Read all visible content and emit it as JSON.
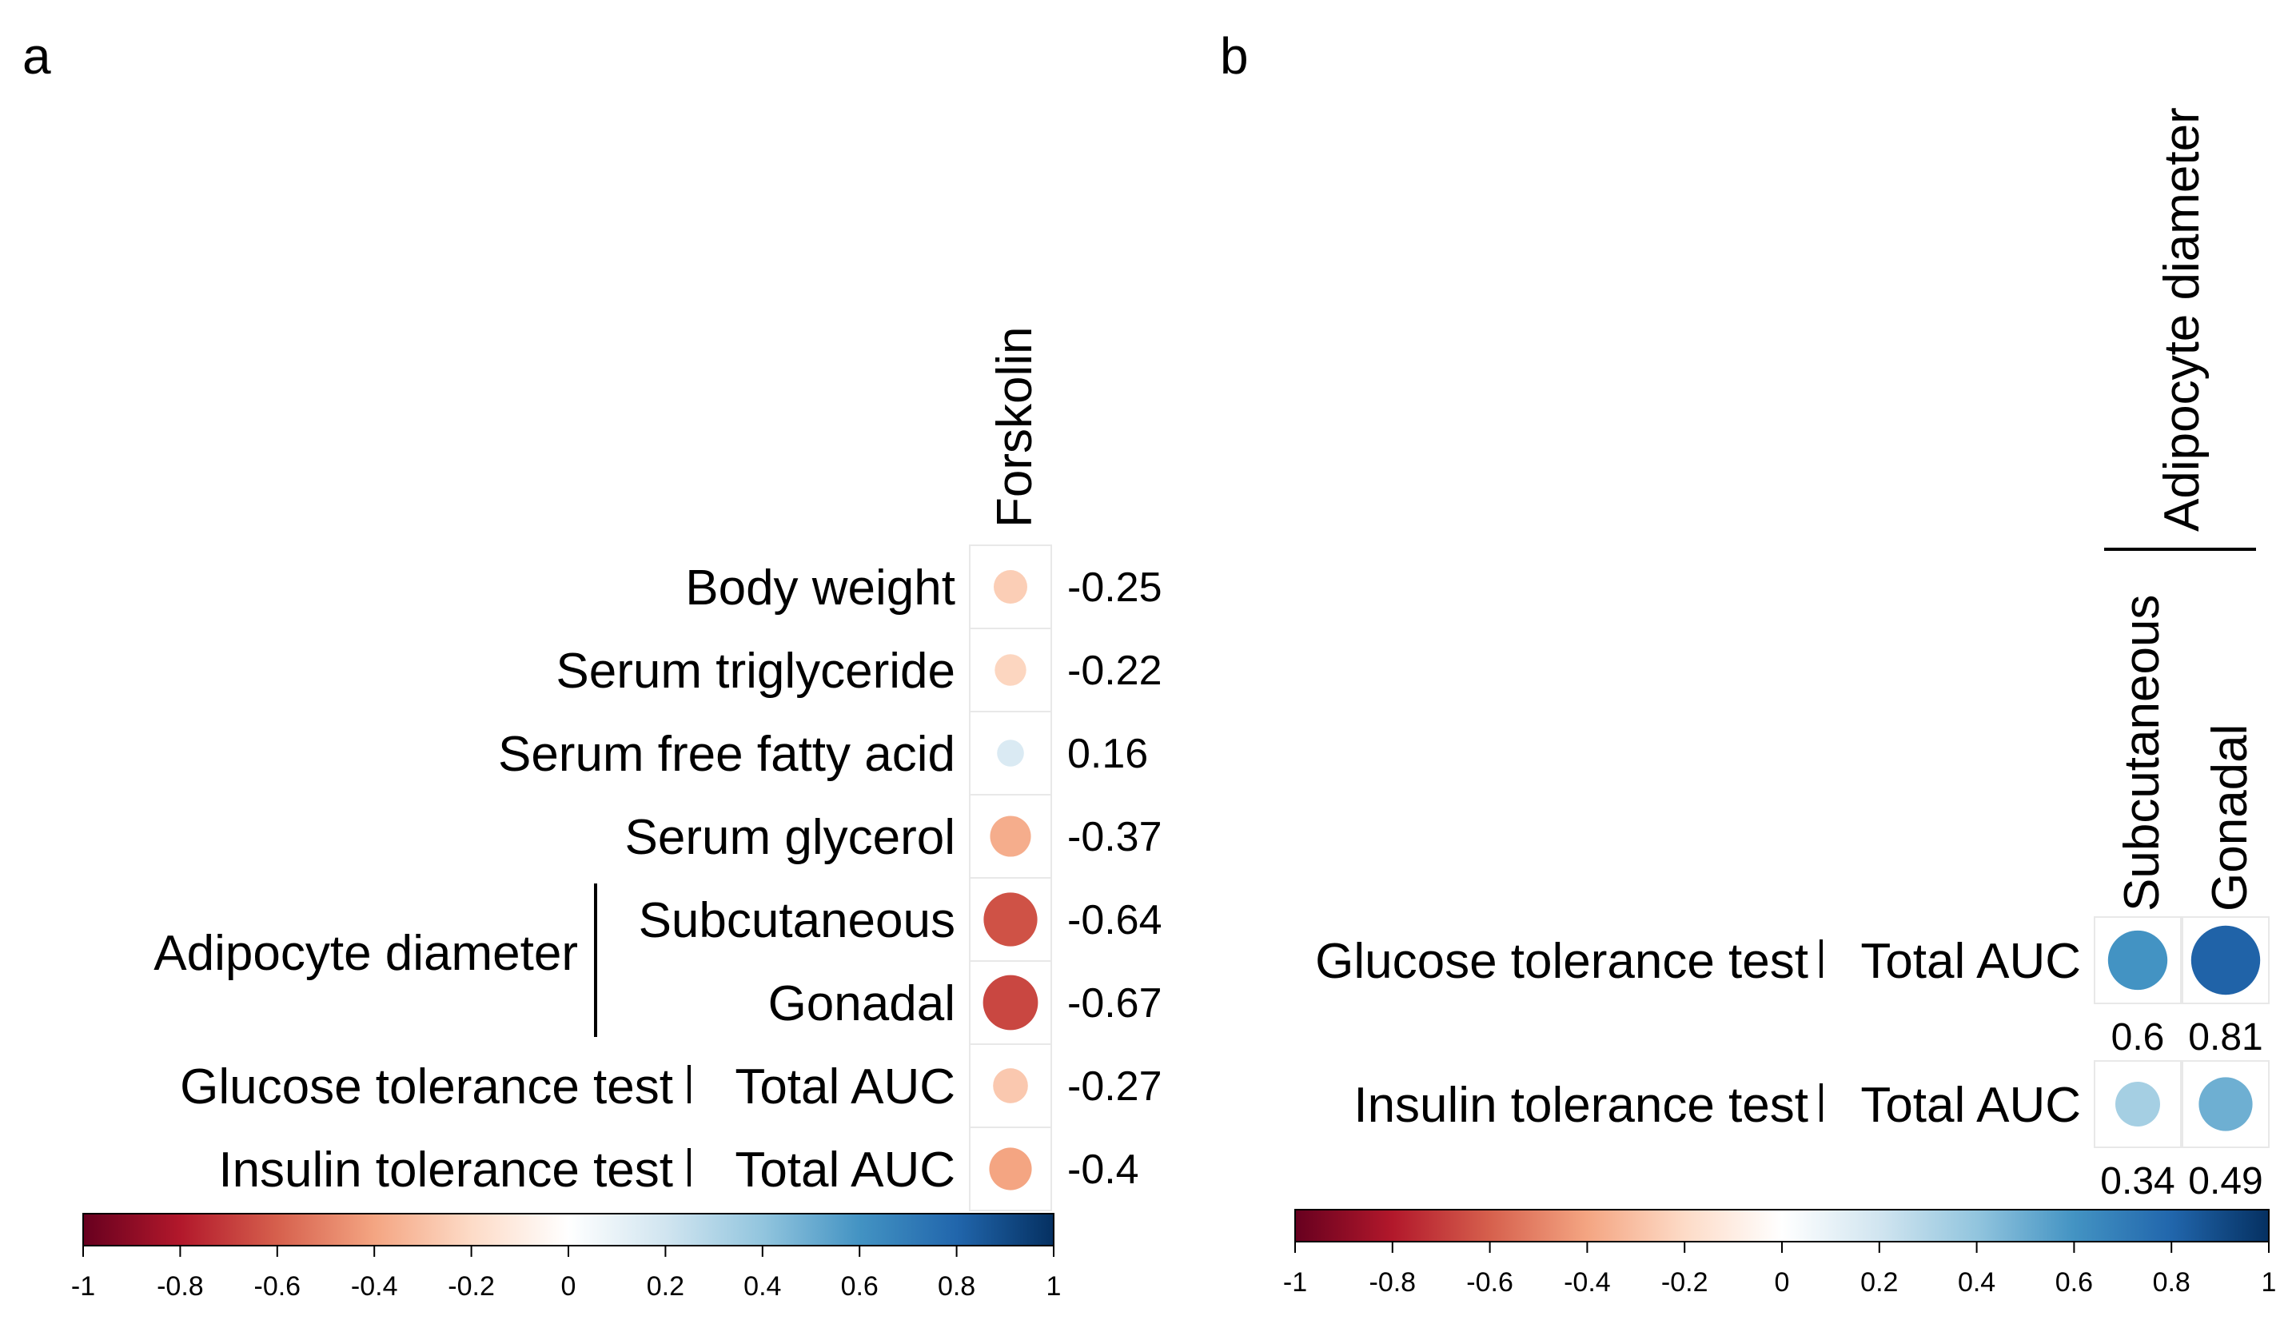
{
  "chart_data": [
    {
      "panel": "a",
      "type": "heatmap",
      "columns": [
        "Forskolin"
      ],
      "rows": [
        {
          "label": "Body weight",
          "value": -0.25,
          "value_label": "-0.25"
        },
        {
          "label": "Serum triglyceride",
          "value": -0.22,
          "value_label": "-0.22"
        },
        {
          "label": "Serum free fatty acid",
          "value": 0.16,
          "value_label": "0.16"
        },
        {
          "label": "Serum glycerol",
          "value": -0.37,
          "value_label": "-0.37"
        },
        {
          "label": "Subcutaneous",
          "group": "Adipocyte diameter",
          "value": -0.64,
          "value_label": "-0.64"
        },
        {
          "label": "Gonadal",
          "group": "Adipocyte diameter",
          "value": -0.67,
          "value_label": "-0.67"
        },
        {
          "label": "Glucose tolerance test",
          "sublabel": "Total AUC",
          "value": -0.27,
          "value_label": "-0.27"
        },
        {
          "label": "Insulin tolerance test",
          "sublabel": "Total AUC",
          "value": -0.4,
          "value_label": "-0.4"
        }
      ],
      "row_group": "Adipocyte diameter",
      "colorbar": {
        "min": -1,
        "max": 1,
        "ticks": [
          "-1",
          "-0.8",
          "-0.6",
          "-0.4",
          "-0.2",
          "0",
          "0.2",
          "0.4",
          "0.6",
          "0.8",
          "1"
        ]
      }
    },
    {
      "panel": "b",
      "type": "heatmap",
      "column_group": "Adipocyte diameter",
      "columns": [
        "Subcutaneous",
        "Gonadal"
      ],
      "rows": [
        {
          "label": "Glucose tolerance test",
          "sublabel": "Total AUC",
          "values": [
            0.6,
            0.81
          ],
          "value_labels": [
            "0.6",
            "0.81"
          ]
        },
        {
          "label": "Insulin tolerance test",
          "sublabel": "Total AUC",
          "values": [
            0.34,
            0.49
          ],
          "value_labels": [
            "0.34",
            "0.49"
          ]
        }
      ],
      "colorbar": {
        "min": -1,
        "max": 1,
        "ticks": [
          "-1",
          "-0.8",
          "-0.6",
          "-0.4",
          "-0.2",
          "0",
          "0.2",
          "0.4",
          "0.6",
          "0.8",
          "1"
        ]
      }
    }
  ],
  "panel_letters": {
    "a": "a",
    "b": "b"
  },
  "colors": {
    "scale": [
      "#67001f",
      "#b2182b",
      "#d6604d",
      "#f4a582",
      "#fddbc7",
      "#ffffff",
      "#d1e5f0",
      "#92c5de",
      "#4393c3",
      "#2166ac",
      "#053061"
    ]
  }
}
